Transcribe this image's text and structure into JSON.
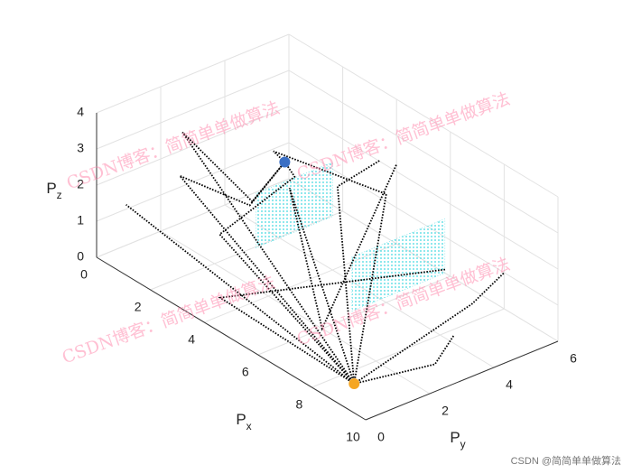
{
  "chart_data": {
    "type": "line3d",
    "xlabel": {
      "text": "P",
      "sub": "x"
    },
    "ylabel": {
      "text": "P",
      "sub": "y"
    },
    "zlabel": {
      "text": "P",
      "sub": "z"
    },
    "xlim": [
      0,
      10
    ],
    "ylim": [
      0,
      6
    ],
    "zlim": [
      0,
      4
    ],
    "xticks": [
      0,
      2,
      4,
      6,
      8,
      10
    ],
    "yticks": [
      0,
      2,
      4,
      6
    ],
    "zticks": [
      0,
      1,
      2,
      3,
      4
    ],
    "grid": true,
    "series": [
      {
        "color": "#000000",
        "x": [
          8.5,
          0.5
        ],
        "y": [
          0.9,
          0.5
        ],
        "z": [
          0,
          1.5
        ]
      },
      {
        "color": "#000000",
        "x": [
          8.5,
          2,
          4,
          3.3
        ],
        "y": [
          0.9,
          1,
          1.5,
          3.1
        ],
        "z": [
          0,
          4,
          2.8,
          3
        ]
      },
      {
        "color": "#000000",
        "x": [
          8.5,
          2.5,
          4.5,
          3.3
        ],
        "y": [
          0.9,
          0.5,
          1,
          3.1
        ],
        "z": [
          0,
          3.2,
          3.1,
          3
        ]
      },
      {
        "color": "#000000",
        "x": [
          8.5,
          3,
          4
        ],
        "y": [
          0.9,
          5,
          5.5
        ],
        "z": [
          0,
          1.5,
          2.5
        ]
      },
      {
        "color": "#000000",
        "x": [
          8.5,
          6,
          3,
          3.3
        ],
        "y": [
          0.9,
          4,
          3,
          3.1
        ],
        "z": [
          0,
          3,
          3.2,
          3
        ]
      },
      {
        "color": "#000000",
        "x": [
          8.5,
          4,
          7
        ],
        "y": [
          0.9,
          0.5,
          5
        ],
        "z": [
          0,
          0.5,
          1
        ]
      },
      {
        "color": "#000000",
        "x": [
          8.5,
          8,
          8
        ],
        "y": [
          0.9,
          5,
          6
        ],
        "z": [
          0,
          0.5,
          1
        ]
      },
      {
        "color": "#000000",
        "x": [
          8.5,
          3,
          6,
          4
        ],
        "y": [
          0.9,
          3.5,
          2,
          6
        ],
        "z": [
          0,
          2,
          0,
          2.2
        ]
      },
      {
        "color": "#000000",
        "x": [
          8.5,
          9,
          8.5
        ],
        "y": [
          0.9,
          3,
          4
        ],
        "z": [
          0,
          0,
          0.2
        ]
      },
      {
        "color": "#000000",
        "x": [
          8.5,
          1,
          2,
          3.3
        ],
        "y": [
          0.9,
          3,
          4.5,
          3.1
        ],
        "z": [
          0,
          0,
          1.5,
          3
        ]
      }
    ],
    "points": [
      {
        "color": "#f5a623",
        "x": 8.5,
        "y": 0.9,
        "z": 0
      },
      {
        "color": "#3a6fc4",
        "x": 3.3,
        "y": 3.1,
        "z": 3
      }
    ],
    "obstacles": [
      {
        "color": "#3fd8e0",
        "x": [
          2.7,
          2.7,
          2.7,
          2.7
        ],
        "y": [
          2.7,
          5.1,
          5.1,
          2.7
        ],
        "z": [
          0.5,
          0.5,
          2,
          2
        ]
      },
      {
        "color": "#3fd8e0",
        "x": [
          5.8,
          5.8,
          5.8,
          5.8
        ],
        "y": [
          3.1,
          6,
          6,
          3.1
        ],
        "z": [
          0,
          0,
          1.5,
          1.5
        ]
      }
    ],
    "annotations": [
      "CSDN博客：简简单单做算法",
      "CSDN博客：简简单单做算法",
      "CSDN博客：简简单单做算法",
      "CSDN博客：简简单单做算法",
      "CSDN @简简单单做算法"
    ]
  }
}
